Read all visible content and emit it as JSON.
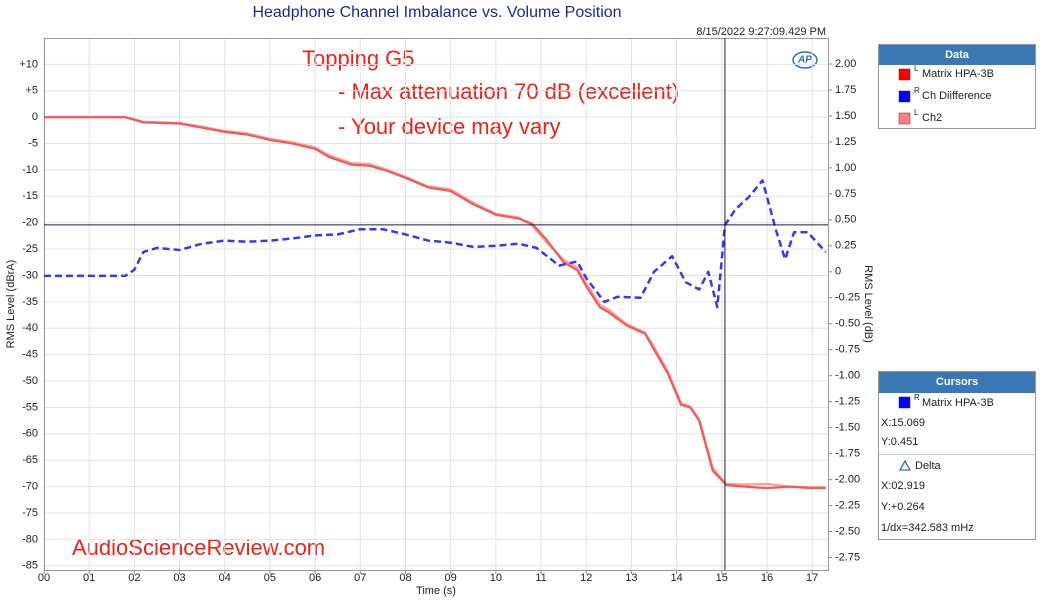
{
  "chart_data": {
    "type": "line",
    "title": "Headphone Channel Imbalance vs. Volume Position",
    "timestamp": "8/15/2022 9:27:09.429 PM",
    "xlabel": "Time (s)",
    "ylabel": "RMS Level (dBrA)",
    "y2label": "RMS Level (dB)",
    "logo": "AP",
    "annotations": [
      "Topping G5",
      "- Max attenuation 70 dB (excellent)",
      "- Your device may vary",
      "AudioScienceReview.com"
    ],
    "xlim": [
      0,
      17.35
    ],
    "ylim": [
      -85.8,
      15
    ],
    "y2lim": [
      -2.87,
      2.25
    ],
    "grid": true,
    "xticks": [
      {
        "value": 0,
        "label": "00"
      },
      {
        "value": 1,
        "label": "01"
      },
      {
        "value": 2,
        "label": "02"
      },
      {
        "value": 3,
        "label": "03"
      },
      {
        "value": 4,
        "label": "04"
      },
      {
        "value": 5,
        "label": "05"
      },
      {
        "value": 6,
        "label": "06"
      },
      {
        "value": 7,
        "label": "07"
      },
      {
        "value": 8,
        "label": "08"
      },
      {
        "value": 9,
        "label": "09"
      },
      10,
      11,
      12,
      13,
      14,
      15,
      16,
      17
    ],
    "yticks": [
      {
        "value": 10,
        "label": "+10"
      },
      {
        "value": 5,
        "label": "+5"
      },
      0,
      -5,
      -10,
      -15,
      -20,
      -25,
      -30,
      -35,
      -40,
      -45,
      -50,
      -55,
      -60,
      -65,
      -70,
      -75,
      -80,
      -85
    ],
    "y2ticks": [
      {
        "value": 2,
        "label": "2.00"
      },
      1.75,
      {
        "value": 1.5,
        "label": "1.50"
      },
      1.25,
      {
        "value": 1,
        "label": "1.00"
      },
      0.75,
      {
        "value": 0.5,
        "label": "0.50"
      },
      0.25,
      0,
      -0.25,
      {
        "value": -0.5,
        "label": "-0.50"
      },
      -0.75,
      {
        "value": -1,
        "label": "-1.00"
      },
      -1.25,
      {
        "value": -1.5,
        "label": "-1.50"
      },
      -1.75,
      {
        "value": -2,
        "label": "-2.00"
      },
      -2.25,
      {
        "value": -2.5,
        "label": "-2.50"
      },
      -2.75
    ],
    "legend_title": "Data",
    "series": [
      {
        "name": "Ch2",
        "channel": "L",
        "color": "#f8a0a0",
        "legend_color": "#ff8080",
        "x": [
          0,
          1.8,
          2.0,
          2.2,
          3.0,
          3.5,
          4.0,
          4.5,
          5.0,
          5.5,
          6.0,
          6.3,
          6.8,
          7.2,
          7.6,
          8.0,
          8.5,
          9.0,
          9.5,
          10.0,
          10.5,
          10.8,
          11.1,
          11.5,
          11.8,
          12.0,
          12.3,
          12.5,
          12.9,
          13.3,
          13.5,
          13.8,
          14.1,
          14.3,
          14.5,
          14.8,
          15.1,
          15.5,
          16.0,
          16.5,
          17.0,
          17.3
        ],
        "values": [
          0,
          0,
          -0.4,
          -0.9,
          -1.1,
          -1.8,
          -2.6,
          -3.1,
          -4.1,
          -4.8,
          -5.7,
          -7.2,
          -8.7,
          -8.9,
          -10,
          -11.3,
          -13.1,
          -13.7,
          -16.2,
          -18.3,
          -19,
          -20.5,
          -23.5,
          -27,
          -28.5,
          -31.5,
          -35.5,
          -36.5,
          -39.2,
          -40.8,
          -43.5,
          -48,
          -54.2,
          -54.8,
          -57.2,
          -66.5,
          -69.5,
          -69.6,
          -69.5,
          -70,
          -70.1,
          -70.1
        ]
      },
      {
        "name": "Matrix HPA-3B",
        "channel": "L",
        "color": "#ee5a56",
        "legend_color": "#ff0000",
        "x": [
          0,
          1.8,
          2.0,
          2.2,
          3.0,
          3.5,
          4.0,
          4.5,
          5.0,
          5.5,
          6.0,
          6.3,
          6.8,
          7.2,
          7.6,
          8.0,
          8.5,
          9.0,
          9.5,
          10.0,
          10.5,
          10.8,
          11.1,
          11.5,
          11.8,
          12.0,
          12.3,
          12.5,
          12.9,
          13.3,
          13.5,
          13.8,
          14.1,
          14.3,
          14.5,
          14.8,
          15.1,
          15.5,
          16.0,
          16.5,
          17.0,
          17.3
        ],
        "values": [
          0,
          0,
          -0.5,
          -1,
          -1.2,
          -2,
          -2.8,
          -3.3,
          -4.3,
          -5,
          -6,
          -7.5,
          -9,
          -9.2,
          -10.2,
          -11.5,
          -13.3,
          -14,
          -16.5,
          -18.5,
          -19.2,
          -20.2,
          -23,
          -27.5,
          -29,
          -32,
          -36,
          -37,
          -39.5,
          -41,
          -44,
          -48.5,
          -54.5,
          -55,
          -57.5,
          -67,
          -69.7,
          -70,
          -70.3,
          -70,
          -70.3,
          -70.3
        ]
      },
      {
        "name": "Ch Diifference",
        "channel": "R",
        "color": "#3838e8",
        "legend_color": "#0000ff",
        "axis": "y2",
        "dashed": true,
        "x": [
          0,
          1.8,
          2.0,
          2.2,
          2.5,
          3.0,
          3.5,
          4.0,
          4.5,
          5.0,
          5.5,
          6.0,
          6.5,
          7.0,
          7.5,
          8.0,
          8.5,
          9.0,
          9.5,
          10.0,
          10.5,
          10.9,
          11.4,
          11.8,
          12.0,
          12.4,
          12.7,
          13.2,
          13.5,
          13.9,
          14.2,
          14.5,
          14.7,
          14.9,
          15.07,
          15.3,
          15.6,
          15.9,
          16.2,
          16.4,
          16.6,
          16.9,
          17.3
        ],
        "values": [
          -0.04,
          -0.04,
          0.02,
          0.19,
          0.23,
          0.21,
          0.27,
          0.3,
          0.29,
          0.3,
          0.32,
          0.35,
          0.36,
          0.41,
          0.41,
          0.36,
          0.3,
          0.28,
          0.24,
          0.25,
          0.27,
          0.23,
          0.06,
          0.1,
          -0.06,
          -0.29,
          -0.24,
          -0.25,
          0.0,
          0.15,
          -0.1,
          -0.17,
          0,
          -0.34,
          0.45,
          0.6,
          0.72,
          0.88,
          0.4,
          0.12,
          0.38,
          0.38,
          0.19
        ]
      }
    ],
    "legend_order": [
      1,
      2,
      0
    ],
    "cursors": {
      "title": "Cursors",
      "x": 15.069,
      "y": 0.451,
      "series": "Matrix HPA-3B",
      "channel": "R",
      "color": "#0000ff",
      "x_text": "X:15.069",
      "y_text": "Y:0.451",
      "delta_title": "Delta",
      "delta_x": "X:02.919",
      "delta_y": "Y:+0.264",
      "delta_freq": "1/dx=342.583 mHz"
    }
  }
}
